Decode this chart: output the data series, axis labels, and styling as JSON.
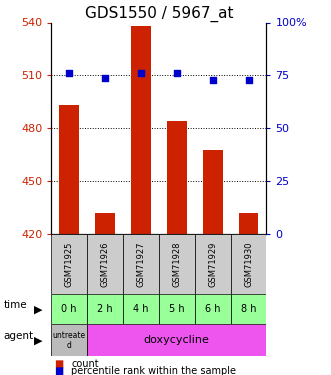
{
  "title": "GDS1550 / 5967_at",
  "samples": [
    "GSM71925",
    "GSM71926",
    "GSM71927",
    "GSM71928",
    "GSM71929",
    "GSM71930"
  ],
  "counts": [
    493,
    432,
    538,
    484,
    468,
    432
  ],
  "percentiles": [
    76,
    74,
    76,
    76,
    73,
    73
  ],
  "ylim_left": [
    420,
    540
  ],
  "ylim_right": [
    0,
    100
  ],
  "yticks_left": [
    420,
    450,
    480,
    510,
    540
  ],
  "yticks_right": [
    0,
    25,
    50,
    75,
    100
  ],
  "hlines": [
    450,
    480,
    510
  ],
  "bar_color": "#cc2200",
  "dot_color": "#0000cc",
  "bar_bottom": 420,
  "time_labels": [
    "0 h",
    "2 h",
    "4 h",
    "5 h",
    "6 h",
    "8 h"
  ],
  "time_bg": "#99ff99",
  "agent_untreated_bg": "#bbbbbb",
  "agent_doxy_bg": "#ee55ee",
  "sample_bg": "#cccccc",
  "legend_count_color": "#cc2200",
  "legend_pct_color": "#0000cc",
  "title_fontsize": 11,
  "tick_fontsize": 8,
  "sample_fontsize": 6,
  "time_fontsize": 7,
  "agent_fontsize": 8,
  "legend_fontsize": 7
}
